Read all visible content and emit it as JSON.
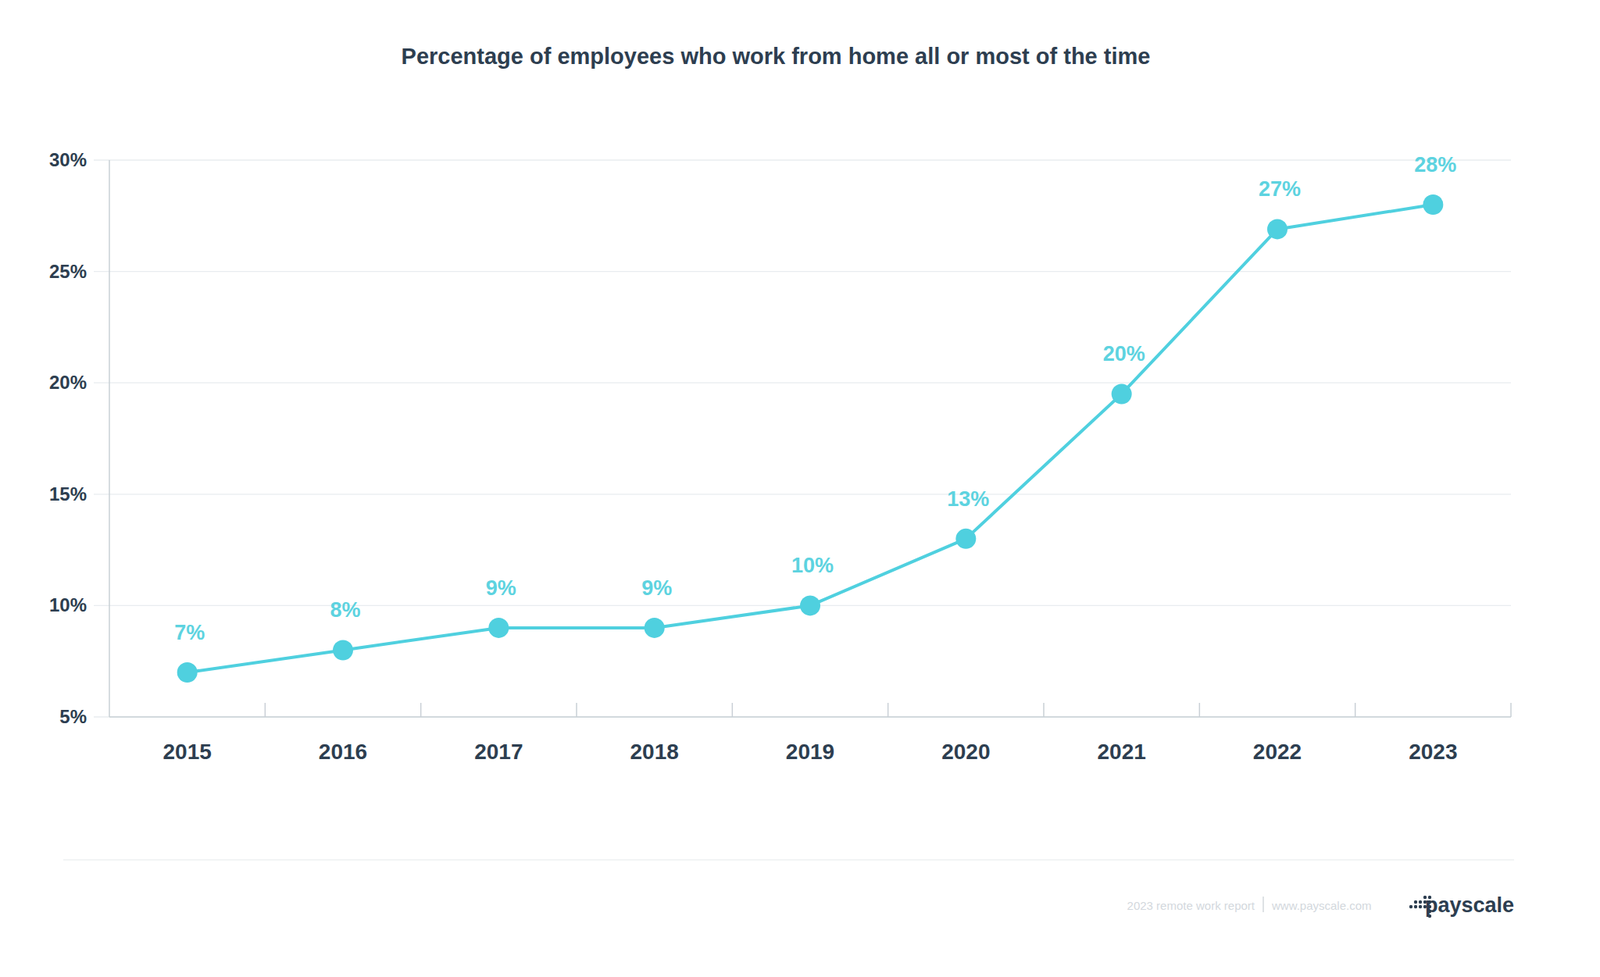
{
  "chart_data": {
    "type": "line",
    "title": "Percentage of employees who work from home all or most of the time",
    "categories": [
      "2015",
      "2016",
      "2017",
      "2018",
      "2019",
      "2020",
      "2021",
      "2022",
      "2023"
    ],
    "values": [
      7,
      8,
      9,
      9,
      10,
      13,
      19.5,
      26.9,
      28
    ],
    "value_labels": [
      "7%",
      "8%",
      "9%",
      "9%",
      "10%",
      "13%",
      "20%",
      "27%",
      "28%"
    ],
    "color": "#4fd0df",
    "marker": "circle",
    "line_style": "solid",
    "data_labels": true,
    "grid": true,
    "ylim": [
      5,
      30
    ],
    "yticks": [
      {
        "value": 5,
        "label": "5%"
      },
      {
        "value": 10,
        "label": "10%"
      },
      {
        "value": 15,
        "label": "15%"
      },
      {
        "value": 20,
        "label": "20%"
      },
      {
        "value": 25,
        "label": "25%"
      },
      {
        "value": 30,
        "label": "30%"
      }
    ],
    "annotations": [
      "2023 remote work report",
      "www.payscale.com",
      "payscale"
    ]
  }
}
